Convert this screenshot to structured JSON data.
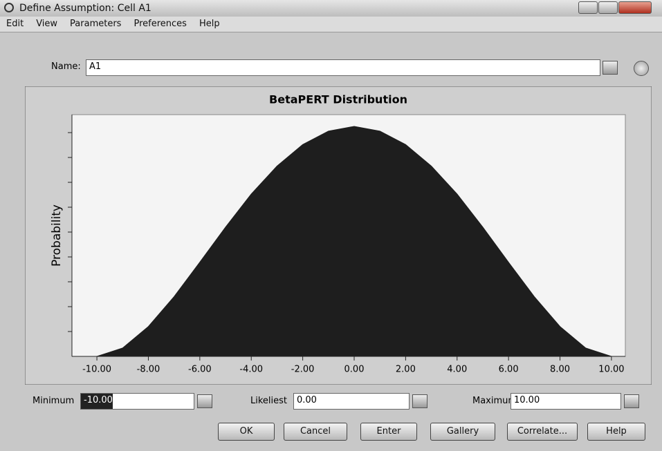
{
  "window": {
    "title": "Define Assumption: Cell A1"
  },
  "menu": [
    "Edit",
    "View",
    "Parameters",
    "Preferences",
    "Help"
  ],
  "name": {
    "label": "Name:",
    "value": "A1"
  },
  "chart": {
    "type": "area",
    "title": "BetaPERT Distribution",
    "ylabel": "Probability",
    "x": [
      -10,
      -9,
      -8,
      -7,
      -6,
      -5,
      -4,
      -3,
      -2,
      -1,
      0,
      1,
      2,
      3,
      4,
      5,
      6,
      7,
      8,
      9,
      10
    ],
    "values": [
      0,
      0.0034,
      0.0122,
      0.0244,
      0.0384,
      0.0527,
      0.0662,
      0.0776,
      0.0864,
      0.0919,
      0.0938,
      0.0919,
      0.0864,
      0.0776,
      0.0662,
      0.0527,
      0.0384,
      0.0244,
      0.0122,
      0.0034,
      0
    ],
    "xlim": [
      -10.97,
      10.54
    ],
    "ylim": [
      0,
      0.0986
    ],
    "xticks": [
      {
        "value": -10,
        "label": "-10.00"
      },
      {
        "value": -8,
        "label": "-8.00"
      },
      {
        "value": -6,
        "label": "-6.00"
      },
      {
        "value": -4,
        "label": "-4.00"
      },
      {
        "value": -2,
        "label": "-2.00"
      },
      {
        "value": 0,
        "label": "0.00"
      },
      {
        "value": 2,
        "label": "2.00"
      },
      {
        "value": 4,
        "label": "4.00"
      },
      {
        "value": 6,
        "label": "6.00"
      },
      {
        "value": 8,
        "label": "8.00"
      },
      {
        "value": 10,
        "label": "10.00"
      }
    ],
    "color": "#1e1e1e"
  },
  "parameters": [
    {
      "label": "Minimum",
      "value": "-10.00"
    },
    {
      "label": "Likeliest",
      "value": "0.00"
    },
    {
      "label": "Maximum",
      "value": "10.00"
    }
  ],
  "buttons": [
    "OK",
    "Cancel",
    "Enter",
    "Gallery",
    "Correlate...",
    "Help"
  ]
}
